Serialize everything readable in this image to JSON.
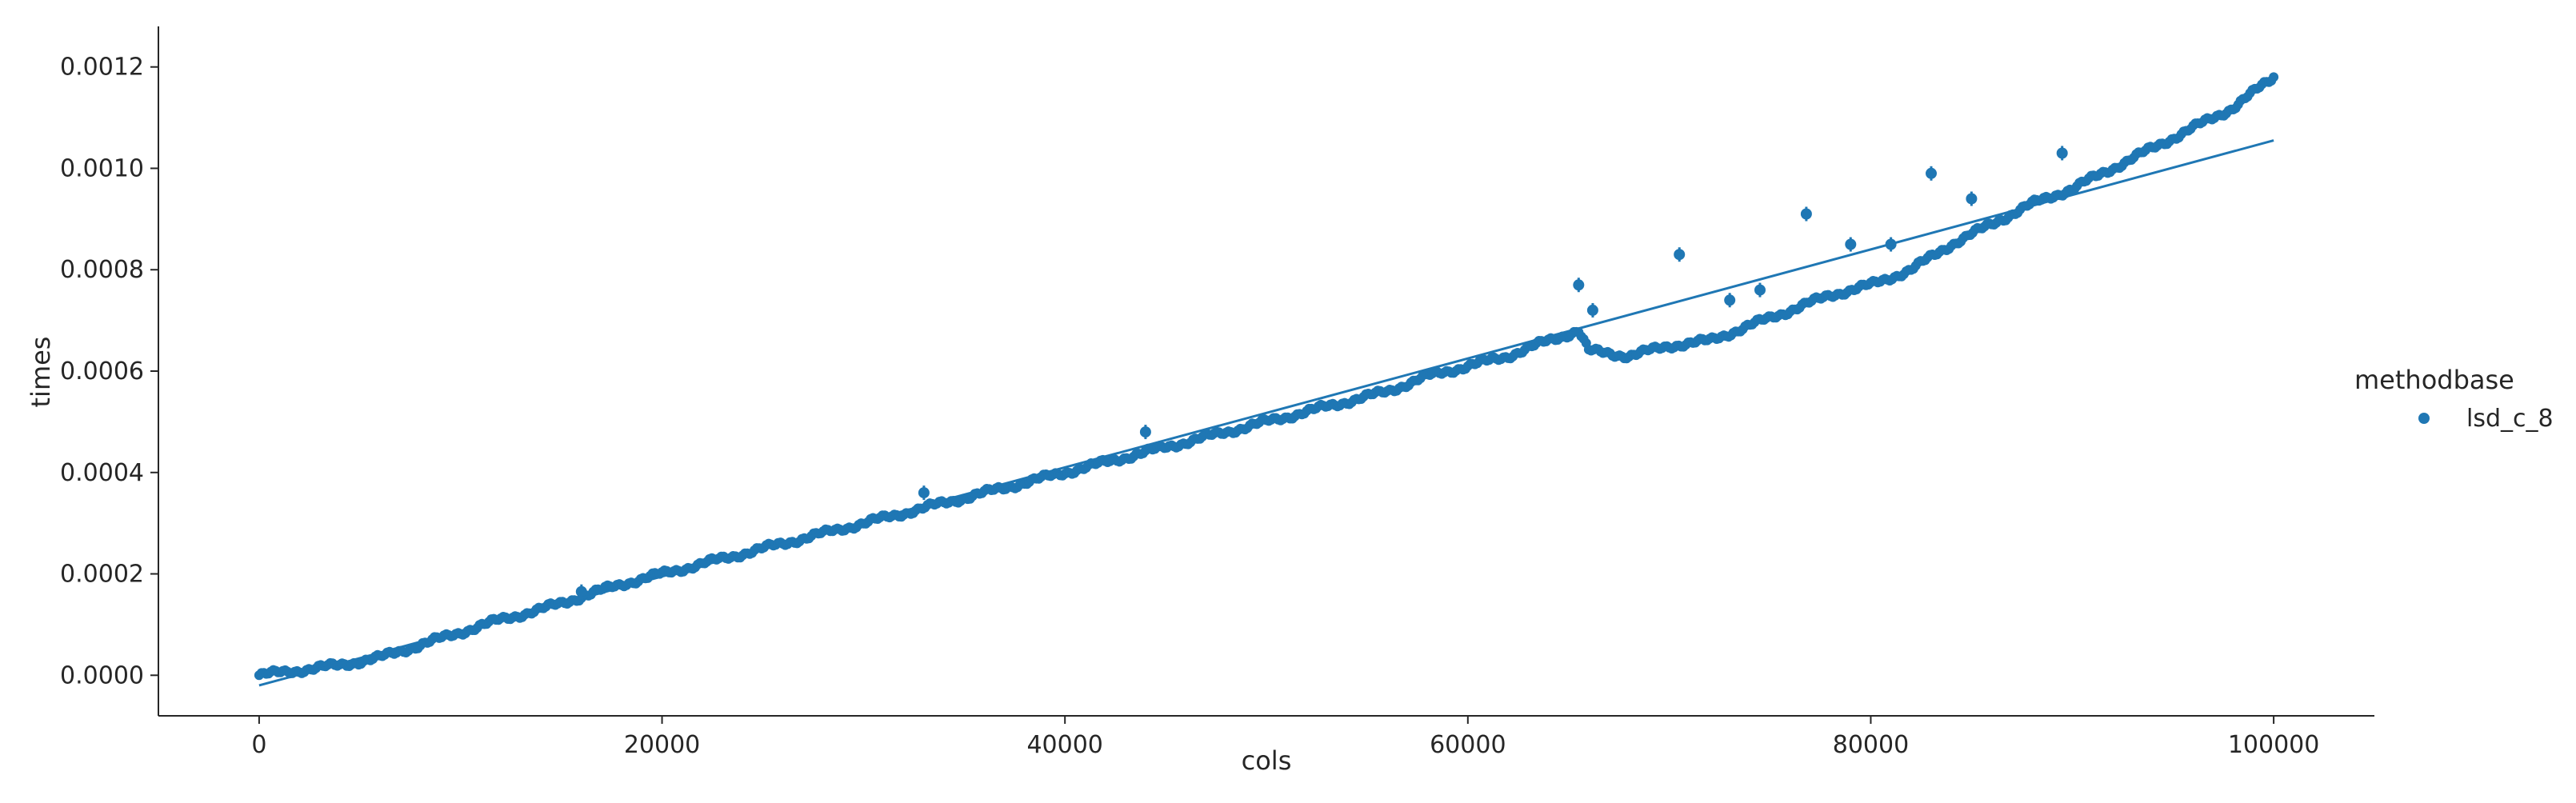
{
  "chart_data": {
    "type": "scatter",
    "xlabel": "cols",
    "ylabel": "times",
    "xlim": [
      -5000,
      105000
    ],
    "ylim": [
      -8e-05,
      0.00128
    ],
    "x_ticks": [
      0,
      20000,
      40000,
      60000,
      80000,
      100000
    ],
    "x_tick_labels": [
      "0",
      "20000",
      "40000",
      "60000",
      "80000",
      "100000"
    ],
    "y_ticks": [
      0.0,
      0.0002,
      0.0004,
      0.0006,
      0.0008,
      0.001,
      0.0012
    ],
    "y_tick_labels": [
      "0.0000",
      "0.0002",
      "0.0004",
      "0.0006",
      "0.0008",
      "0.0010",
      "0.0012"
    ],
    "grid": false,
    "legend": {
      "title": "methodbase",
      "placement": "right",
      "entries": [
        "lsd_c_8"
      ]
    },
    "color": "#1f77b4",
    "series": [
      {
        "name": "lsd_c_8",
        "x": [
          0,
          2000,
          4000,
          6000,
          8000,
          10000,
          12000,
          14000,
          16000,
          18000,
          20000,
          22000,
          24000,
          26000,
          28000,
          30000,
          32000,
          34000,
          36000,
          38000,
          40000,
          42000,
          44000,
          46000,
          48000,
          50000,
          52000,
          54000,
          56000,
          58000,
          60000,
          62000,
          64000,
          65500,
          66000,
          68000,
          70000,
          72000,
          74000,
          76000,
          78000,
          80000,
          82000,
          84000,
          86000,
          88000,
          90000,
          92000,
          94000,
          96000,
          98000,
          100000
        ],
        "y": [
          0.0,
          1e-05,
          2e-05,
          3.5e-05,
          6e-05,
          8.5e-05,
          0.00011,
          0.00013,
          0.000155,
          0.00018,
          0.0002,
          0.00022,
          0.00024,
          0.00026,
          0.00028,
          0.0003,
          0.00032,
          0.00034,
          0.00036,
          0.00038,
          0.0004,
          0.00042,
          0.00044,
          0.00046,
          0.00048,
          0.0005,
          0.00052,
          0.00054,
          0.00056,
          0.00059,
          0.00061,
          0.00063,
          0.00066,
          0.00068,
          0.00064,
          0.00063,
          0.00065,
          0.00066,
          0.00069,
          0.00072,
          0.00075,
          0.00077,
          0.0008,
          0.00085,
          0.00089,
          0.00093,
          0.00096,
          0.001,
          0.00104,
          0.00108,
          0.00112,
          0.00118
        ]
      }
    ],
    "outliers": {
      "x": [
        16000,
        33000,
        44000,
        65500,
        66200,
        70500,
        73000,
        74500,
        76800,
        79000,
        81000,
        83000,
        85000,
        89500
      ],
      "y": [
        0.000165,
        0.00036,
        0.00048,
        0.00077,
        0.00072,
        0.00083,
        0.00074,
        0.00076,
        0.00091,
        0.00085,
        0.00085,
        0.00099,
        0.00094,
        0.00103
      ]
    },
    "regression_line": {
      "x": [
        0,
        100000
      ],
      "y": [
        -2e-05,
        0.001055
      ]
    }
  }
}
